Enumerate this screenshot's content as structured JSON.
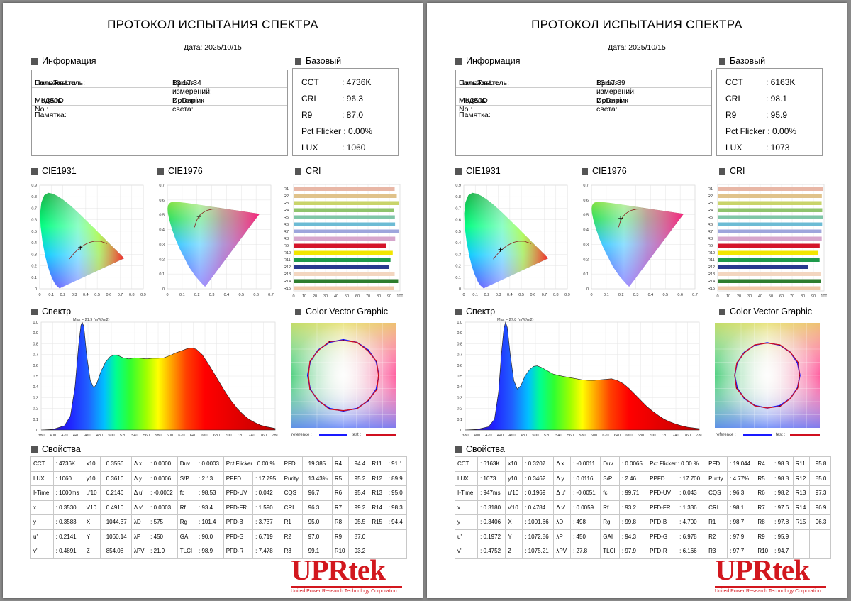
{
  "common": {
    "title": "ПРОТОКОЛ ИСПЫТАНИЯ СПЕКТРА",
    "sections": {
      "info": "Информация",
      "basic": "Базовый",
      "cie1931": "CIE1931",
      "cie1976": "CIE1976",
      "cri": "CRI",
      "spectrum": "Спектр",
      "cvg": "Color Vector Graphic",
      "props": "Свойства"
    },
    "labels": {
      "user": "Пользователь:",
      "time": "Время измерений:",
      "model": "Модель No :",
      "source": "Источник света:",
      "memo": "Памятка:"
    },
    "basic_keys": [
      "CCT",
      "CRI",
      "R9",
      "Pct Flicker :",
      "LUX"
    ],
    "cie1931_ticks": {
      "x": [
        "0",
        "0.1",
        "0.2",
        "0.3",
        "0.4",
        "0.5",
        "0.6",
        "0.7",
        "0.8",
        "0.9"
      ],
      "y": [
        "0",
        "0.1",
        "0.2",
        "0.3",
        "0.4",
        "0.5",
        "0.6",
        "0.7",
        "0.8",
        "0.9"
      ]
    },
    "cie1976_ticks": {
      "x": [
        "0",
        "0.1",
        "0.2",
        "0.3",
        "0.4",
        "0.5",
        "0.6",
        "0.7"
      ],
      "y": [
        "0",
        "0.1",
        "0.2",
        "0.3",
        "0.4",
        "0.5",
        "0.6",
        "0.7"
      ]
    },
    "cri_labels": [
      "R1",
      "R2",
      "R3",
      "R4",
      "R5",
      "R6",
      "R7",
      "R8",
      "R9",
      "R10",
      "R11",
      "R12",
      "R13",
      "R14",
      "R15"
    ],
    "cri_colors": [
      "#e8b7a6",
      "#e0c28a",
      "#c9d46a",
      "#8fc46d",
      "#7fc6a7",
      "#6cbbd4",
      "#9ea6dc",
      "#d6a6cc",
      "#d4142a",
      "#f2e600",
      "#1e9a4b",
      "#283a8e",
      "#f3d6c0",
      "#2e7d2e",
      "#f0c8a8"
    ],
    "cri_ticks": [
      "0",
      "10",
      "20",
      "30",
      "40",
      "50",
      "60",
      "70",
      "80",
      "90",
      "100"
    ],
    "spec_ticks_x": [
      "380",
      "400",
      "420",
      "440",
      "460",
      "480",
      "500",
      "520",
      "540",
      "560",
      "580",
      "600",
      "620",
      "640",
      "660",
      "680",
      "700",
      "720",
      "740",
      "760",
      "780"
    ],
    "spec_ticks_y": [
      "0",
      "0.1",
      "0.2",
      "0.3",
      "0.4",
      "0.5",
      "0.6",
      "0.7",
      "0.8",
      "0.9",
      "1.0"
    ],
    "cvg_legend": {
      "reference": "reference :",
      "test": "test :"
    },
    "logo": {
      "text": "UPRtek",
      "subtitle": "United Power Research Technology Corporation"
    }
  },
  "pages": [
    {
      "date": "Дата: 2025/10/15",
      "info": {
        "user": "LampTest.ru",
        "time": "13:17:34",
        "model": "MK350D",
        "source": "DpDupi",
        "memo": ""
      },
      "basic": [
        ": 4736K",
        ": 96.3",
        ": 87.0",
        "0.00%",
        ": 1060"
      ],
      "cie1931_point": [
        0.353,
        0.3583
      ],
      "cie1976_point": [
        0.2141,
        0.4891
      ],
      "cri_values": [
        95.0,
        97.0,
        99.1,
        94.4,
        95.2,
        95.4,
        99.2,
        95.5,
        87.0,
        93.2,
        91.1,
        89.9,
        95.0,
        98.3,
        94.4
      ],
      "spectrum": {
        "max_label": "Max = 21.9 (mW/m2)",
        "points": [
          [
            380,
            0
          ],
          [
            400,
            0.005
          ],
          [
            420,
            0.04
          ],
          [
            430,
            0.13
          ],
          [
            438,
            0.4
          ],
          [
            444,
            0.78
          ],
          [
            448,
            0.97
          ],
          [
            450,
            1.0
          ],
          [
            453,
            0.96
          ],
          [
            458,
            0.68
          ],
          [
            464,
            0.46
          ],
          [
            470,
            0.39
          ],
          [
            475,
            0.43
          ],
          [
            482,
            0.54
          ],
          [
            490,
            0.63
          ],
          [
            498,
            0.68
          ],
          [
            505,
            0.695
          ],
          [
            512,
            0.69
          ],
          [
            520,
            0.67
          ],
          [
            530,
            0.66
          ],
          [
            540,
            0.67
          ],
          [
            550,
            0.665
          ],
          [
            560,
            0.66
          ],
          [
            570,
            0.665
          ],
          [
            580,
            0.665
          ],
          [
            590,
            0.67
          ],
          [
            600,
            0.69
          ],
          [
            610,
            0.715
          ],
          [
            620,
            0.735
          ],
          [
            630,
            0.755
          ],
          [
            638,
            0.76
          ],
          [
            645,
            0.75
          ],
          [
            655,
            0.7
          ],
          [
            665,
            0.62
          ],
          [
            675,
            0.53
          ],
          [
            685,
            0.44
          ],
          [
            695,
            0.35
          ],
          [
            705,
            0.27
          ],
          [
            715,
            0.2
          ],
          [
            725,
            0.145
          ],
          [
            735,
            0.1
          ],
          [
            745,
            0.07
          ],
          [
            755,
            0.045
          ],
          [
            765,
            0.03
          ],
          [
            780,
            0.015
          ]
        ]
      },
      "cvg": {
        "ref": [
          [
            0,
            0.81
          ],
          [
            22.5,
            0.81
          ],
          [
            45,
            0.81
          ],
          [
            67.5,
            0.81
          ],
          [
            90,
            0.81
          ],
          [
            112.5,
            0.81
          ],
          [
            135,
            0.81
          ],
          [
            157.5,
            0.81
          ],
          [
            180,
            0.81
          ],
          [
            202.5,
            0.81
          ],
          [
            225,
            0.81
          ],
          [
            247.5,
            0.81
          ],
          [
            270,
            0.81
          ],
          [
            292.5,
            0.81
          ],
          [
            315,
            0.81
          ],
          [
            337.5,
            0.81
          ]
        ],
        "test": [
          [
            0,
            0.79
          ],
          [
            22.5,
            0.81
          ],
          [
            45,
            0.79
          ],
          [
            67.5,
            0.82
          ],
          [
            90,
            0.8
          ],
          [
            112.5,
            0.83
          ],
          [
            135,
            0.8
          ],
          [
            157.5,
            0.82
          ],
          [
            180,
            0.8
          ],
          [
            202.5,
            0.83
          ],
          [
            225,
            0.8
          ],
          [
            247.5,
            0.82
          ],
          [
            270,
            0.79
          ],
          [
            292.5,
            0.82
          ],
          [
            315,
            0.8
          ],
          [
            337.5,
            0.83
          ]
        ]
      },
      "props": [
        [
          "CCT",
          ": 4736K",
          "x10",
          ": 0.3556",
          "Δ x",
          ": 0.0000",
          "Duv",
          ": 0.0003",
          "Pct Flicker : 0.00 %",
          "",
          "PFD",
          ": 19.385",
          "R4",
          ": 94.4",
          "R11",
          ": 91.1"
        ],
        [
          "LUX",
          ": 1060",
          "y10",
          ": 0.3616",
          "Δ y",
          ": 0.0006",
          "S/P",
          ": 2.13",
          "PPFD",
          ": 17.795",
          "Purity",
          ": 13.43%",
          "R5",
          ": 95.2",
          "R12",
          ": 89.9"
        ],
        [
          "I-Time",
          ": 1000ms",
          "u'10",
          ": 0.2146",
          "Δ u'",
          ": -0.0002",
          "fc",
          ": 98.53",
          "PFD-UV",
          ": 0.042",
          "CQS",
          ": 96.7",
          "R6",
          ": 95.4",
          "R13",
          ": 95.0"
        ],
        [
          "x",
          ": 0.3530",
          "v'10",
          ": 0.4910",
          "Δ v'",
          ": 0.0003",
          "Rf",
          ": 93.4",
          "PFD-FR",
          ": 1.590",
          "CRI",
          ": 96.3",
          "R7",
          ": 99.2",
          "R14",
          ": 98.3"
        ],
        [
          "y",
          ": 0.3583",
          "X",
          ": 1044.37",
          "λD",
          ": 575",
          "Rg",
          ": 101.4",
          "PFD-B",
          ": 3.737",
          "R1",
          ": 95.0",
          "R8",
          ": 95.5",
          "R15",
          ": 94.4"
        ],
        [
          "u'",
          ": 0.2141",
          "Y",
          ": 1060.14",
          "λP",
          ": 450",
          "GAI",
          ": 90.0",
          "PFD-G",
          ": 6.719",
          "R2",
          ": 97.0",
          "R9",
          ": 87.0",
          "",
          ""
        ],
        [
          "v'",
          ": 0.4891",
          "Z",
          ": 854.08",
          "λPV",
          ": 21.9",
          "TLCI",
          ": 98.9",
          "PFD-R",
          ": 7.478",
          "R3",
          ": 99.1",
          "R10",
          ": 93.2",
          "",
          ""
        ]
      ]
    },
    {
      "date": "Дата: 2025/10/15",
      "info": {
        "user": "LampTest.ru",
        "time": "13:17:39",
        "model": "MK350D",
        "source": "DpDupi",
        "memo": ""
      },
      "basic": [
        ": 6163K",
        ": 98.1",
        ": 95.9",
        "0.00%",
        ": 1073"
      ],
      "cie1931_point": [
        0.318,
        0.3406
      ],
      "cie1976_point": [
        0.1972,
        0.4752
      ],
      "cri_values": [
        98.7,
        97.9,
        97.7,
        98.3,
        98.8,
        98.2,
        97.6,
        97.8,
        95.9,
        94.7,
        95.8,
        85.0,
        97.3,
        96.9,
        96.3
      ],
      "spectrum": {
        "max_label": "Max = 27.8 (mW/m2)",
        "points": [
          [
            380,
            0
          ],
          [
            400,
            0.005
          ],
          [
            420,
            0.03
          ],
          [
            430,
            0.1
          ],
          [
            437,
            0.35
          ],
          [
            442,
            0.72
          ],
          [
            446,
            0.94
          ],
          [
            449,
            1.0
          ],
          [
            452,
            0.95
          ],
          [
            457,
            0.7
          ],
          [
            463,
            0.46
          ],
          [
            469,
            0.38
          ],
          [
            475,
            0.41
          ],
          [
            482,
            0.5
          ],
          [
            490,
            0.56
          ],
          [
            497,
            0.59
          ],
          [
            503,
            0.595
          ],
          [
            510,
            0.58
          ],
          [
            520,
            0.55
          ],
          [
            530,
            0.52
          ],
          [
            540,
            0.505
          ],
          [
            550,
            0.495
          ],
          [
            560,
            0.485
          ],
          [
            570,
            0.475
          ],
          [
            580,
            0.465
          ],
          [
            590,
            0.46
          ],
          [
            600,
            0.46
          ],
          [
            610,
            0.465
          ],
          [
            620,
            0.47
          ],
          [
            630,
            0.475
          ],
          [
            640,
            0.46
          ],
          [
            650,
            0.43
          ],
          [
            660,
            0.385
          ],
          [
            670,
            0.33
          ],
          [
            680,
            0.275
          ],
          [
            690,
            0.22
          ],
          [
            700,
            0.175
          ],
          [
            710,
            0.135
          ],
          [
            720,
            0.1
          ],
          [
            730,
            0.075
          ],
          [
            740,
            0.055
          ],
          [
            750,
            0.038
          ],
          [
            760,
            0.026
          ],
          [
            780,
            0.012
          ]
        ]
      },
      "cvg": {
        "ref": [
          [
            0,
            0.74
          ],
          [
            22.5,
            0.74
          ],
          [
            45,
            0.74
          ],
          [
            67.5,
            0.74
          ],
          [
            90,
            0.74
          ],
          [
            112.5,
            0.74
          ],
          [
            135,
            0.74
          ],
          [
            157.5,
            0.74
          ],
          [
            180,
            0.74
          ],
          [
            202.5,
            0.74
          ],
          [
            225,
            0.74
          ],
          [
            247.5,
            0.74
          ],
          [
            270,
            0.74
          ],
          [
            292.5,
            0.74
          ],
          [
            315,
            0.74
          ],
          [
            337.5,
            0.74
          ]
        ],
        "test": [
          [
            0,
            0.73
          ],
          [
            22.5,
            0.75
          ],
          [
            45,
            0.74
          ],
          [
            67.5,
            0.76
          ],
          [
            90,
            0.73
          ],
          [
            112.5,
            0.75
          ],
          [
            135,
            0.74
          ],
          [
            157.5,
            0.76
          ],
          [
            180,
            0.74
          ],
          [
            202.5,
            0.75
          ],
          [
            225,
            0.73
          ],
          [
            247.5,
            0.76
          ],
          [
            270,
            0.74
          ],
          [
            292.5,
            0.75
          ],
          [
            315,
            0.73
          ],
          [
            337.5,
            0.75
          ]
        ]
      },
      "props": [
        [
          "CCT",
          ": 6163K",
          "x10",
          ": 0.3207",
          "Δ x",
          ": -0.0011",
          "Duv",
          ": 0.0065",
          "Pct Flicker : 0.00 %",
          "",
          "PFD",
          ": 19.044",
          "R4",
          ": 98.3",
          "R11",
          ": 95.8"
        ],
        [
          "LUX",
          ": 1073",
          "y10",
          ": 0.3462",
          "Δ y",
          ": 0.0116",
          "S/P",
          ": 2.46",
          "PPFD",
          ": 17.700",
          "Purity",
          ": 4.77%",
          "R5",
          ": 98.8",
          "R12",
          ": 85.0"
        ],
        [
          "I-Time",
          ": 947ms",
          "u'10",
          ": 0.1969",
          "Δ u'",
          ": -0.0051",
          "fc",
          ": 99.71",
          "PFD-UV",
          ": 0.043",
          "CQS",
          ": 96.3",
          "R6",
          ": 98.2",
          "R13",
          ": 97.3"
        ],
        [
          "x",
          ": 0.3180",
          "v'10",
          ": 0.4784",
          "Δ v'",
          ": 0.0059",
          "Rf",
          ": 93.2",
          "PFD-FR",
          ": 1.336",
          "CRI",
          ": 98.1",
          "R7",
          ": 97.6",
          "R14",
          ": 96.9"
        ],
        [
          "y",
          ": 0.3406",
          "X",
          ": 1001.66",
          "λD",
          ": 498",
          "Rg",
          ": 99.8",
          "PFD-B",
          ": 4.700",
          "R1",
          ": 98.7",
          "R8",
          ": 97.8",
          "R15",
          ": 96.3"
        ],
        [
          "u'",
          ": 0.1972",
          "Y",
          ": 1072.86",
          "λP",
          ": 450",
          "GAI",
          ": 94.3",
          "PFD-G",
          ": 6.978",
          "R2",
          ": 97.9",
          "R9",
          ": 95.9",
          "",
          ""
        ],
        [
          "v'",
          ": 0.4752",
          "Z",
          ": 1075.21",
          "λPV",
          ": 27.8",
          "TLCI",
          ": 97.9",
          "PFD-R",
          ": 6.166",
          "R3",
          ": 97.7",
          "R10",
          ": 94.7",
          "",
          ""
        ]
      ]
    }
  ]
}
